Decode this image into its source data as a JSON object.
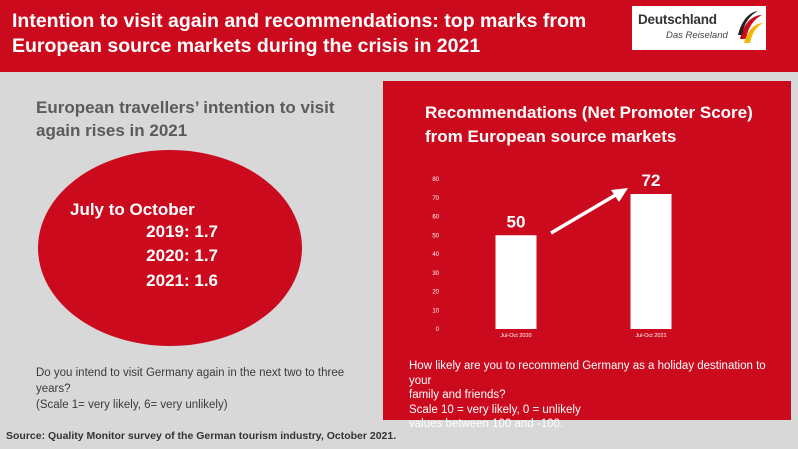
{
  "header": {
    "title": "Intention to visit again and recommendations: top marks from European source markets during the crisis in 2021"
  },
  "logo": {
    "name": "Deutschland",
    "subtitle": "Das Reiseland"
  },
  "left": {
    "heading": "European travellers’ intention to visit again rises in 2021",
    "circle": {
      "title": "July to October",
      "rows": [
        "2019: 1.7",
        "2020: 1.7",
        "2021: 1.6"
      ]
    },
    "question": "Do you intend to visit Germany again in the next two to three years?",
    "scale": "(Scale 1= very likely, 6= very unlikely)"
  },
  "right": {
    "heading": "Recommendations (Net Promoter Score) from European source markets",
    "question_lines": [
      "How likely are you to recommend Germany as a holiday destination to your",
      "family and friends?",
      "Scale 10 = very likely,  0 = unlikely",
      "values between 100 and -100."
    ]
  },
  "chart_data": {
    "type": "bar",
    "categories": [
      "Jul-Oct 2020",
      "Jul-Oct 2021"
    ],
    "values": [
      50,
      72
    ],
    "data_labels": [
      "50",
      "72"
    ],
    "ylim": [
      0,
      80
    ],
    "yticks": [
      0,
      10,
      20,
      30,
      40,
      50,
      60,
      70,
      80
    ],
    "grid": false,
    "bar_color": "#ffffff"
  },
  "source": "Source: Quality Monitor survey of the German tourism industry, October 2021.",
  "colors": {
    "brand_red": "#cc0a1d",
    "background": "#d8d8d8"
  }
}
